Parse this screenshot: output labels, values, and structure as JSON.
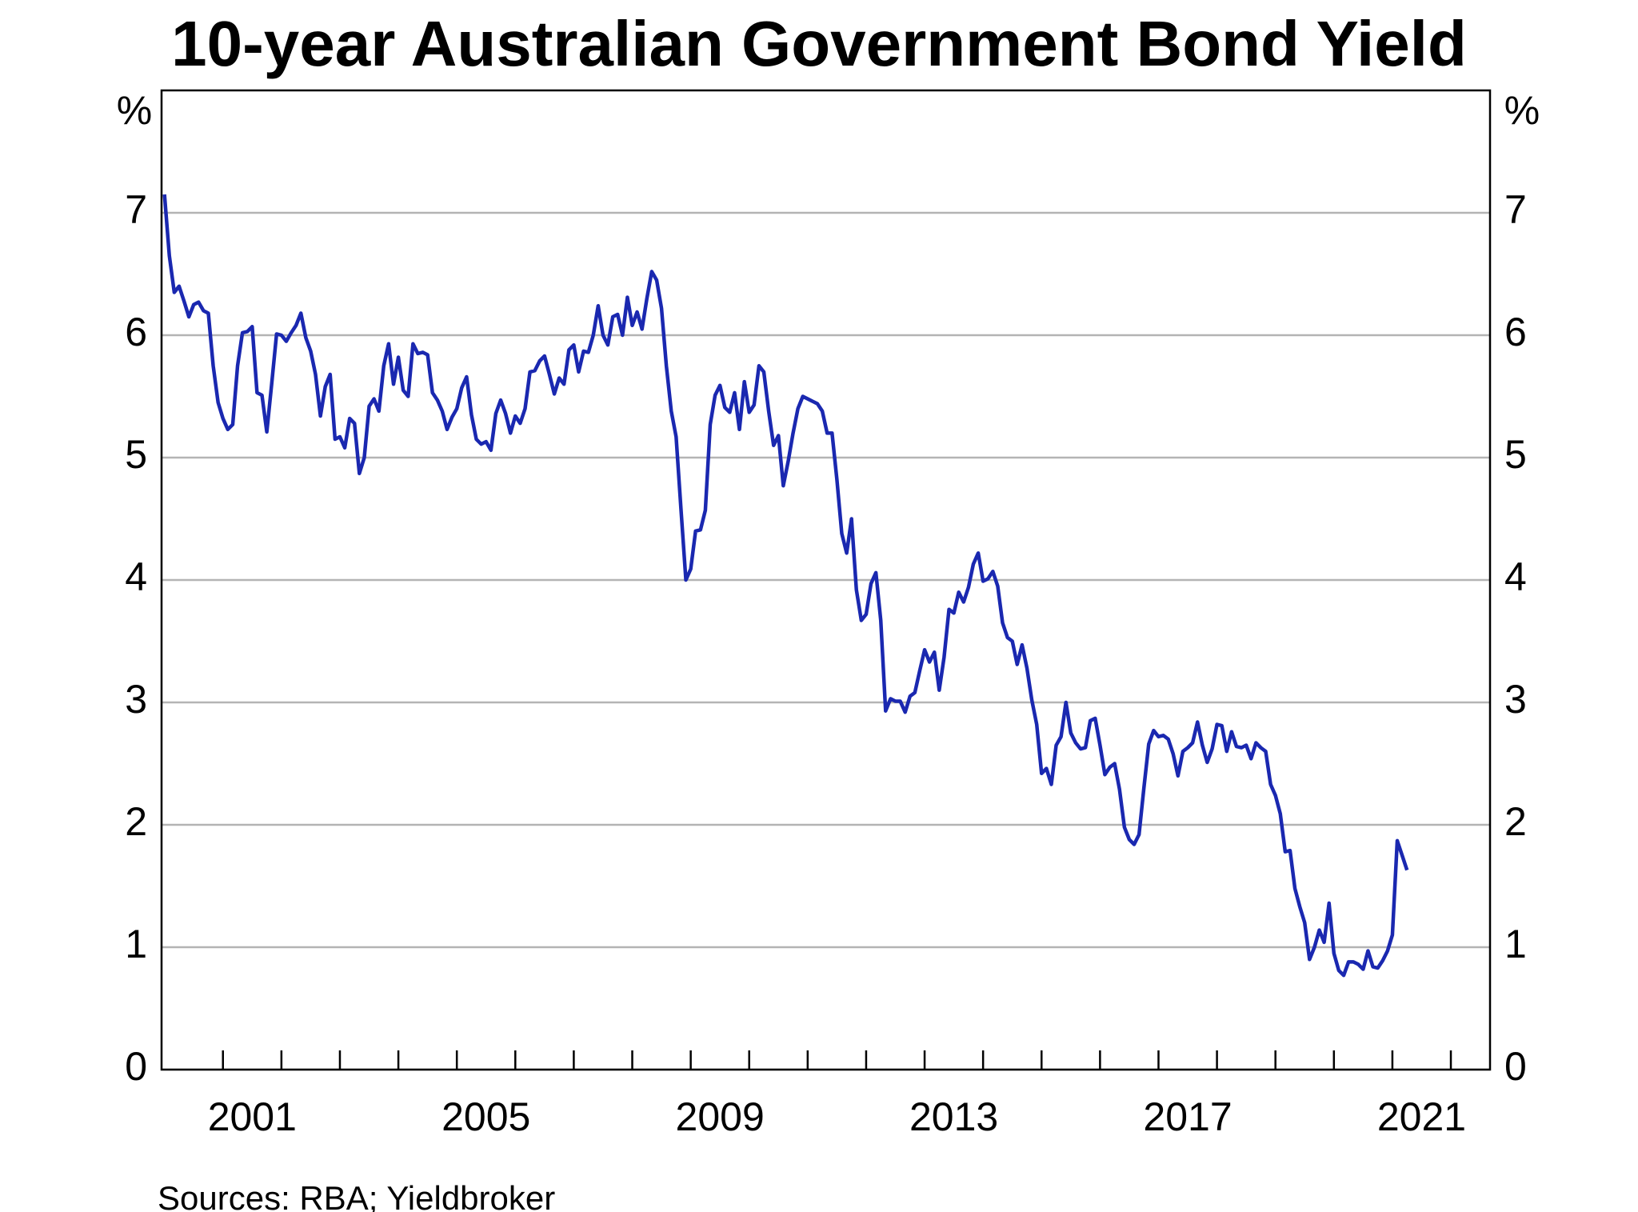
{
  "chart_data": {
    "type": "line",
    "title": "10-year Australian Government Bond Yield",
    "y_unit": "%",
    "source": "Sources: RBA; Yieldbroker",
    "color": "#1a28b0",
    "grid": true,
    "xlim": [
      1999.95,
      2022.67
    ],
    "ylim": [
      0,
      8
    ],
    "yticks": [
      0,
      1,
      2,
      3,
      4,
      5,
      6,
      7
    ],
    "xticks": [
      2001,
      2002,
      2003,
      2004,
      2005,
      2006,
      2007,
      2008,
      2009,
      2010,
      2011,
      2012,
      2013,
      2014,
      2015,
      2016,
      2017,
      2018,
      2019,
      2020,
      2021,
      2022
    ],
    "xtick_labels": [
      {
        "value": 2001.5,
        "label": "2001"
      },
      {
        "value": 2005.5,
        "label": "2005"
      },
      {
        "value": 2009.5,
        "label": "2009"
      },
      {
        "value": 2013.5,
        "label": "2013"
      },
      {
        "value": 2017.5,
        "label": "2017"
      },
      {
        "value": 2021.5,
        "label": "2021"
      }
    ],
    "x": [
      2000,
      2000.083,
      2000.167,
      2000.25,
      2000.333,
      2000.417,
      2000.5,
      2000.583,
      2000.667,
      2000.75,
      2000.833,
      2000.917,
      2001,
      2001.083,
      2001.167,
      2001.25,
      2001.333,
      2001.417,
      2001.5,
      2001.583,
      2001.667,
      2001.75,
      2001.833,
      2001.917,
      2002,
      2002.083,
      2002.167,
      2002.25,
      2002.333,
      2002.417,
      2002.5,
      2002.583,
      2002.667,
      2002.75,
      2002.833,
      2002.917,
      2003,
      2003.083,
      2003.167,
      2003.25,
      2003.333,
      2003.417,
      2003.5,
      2003.583,
      2003.667,
      2003.75,
      2003.833,
      2003.917,
      2004,
      2004.083,
      2004.167,
      2004.25,
      2004.333,
      2004.417,
      2004.5,
      2004.583,
      2004.667,
      2004.75,
      2004.833,
      2004.917,
      2005,
      2005.083,
      2005.167,
      2005.25,
      2005.333,
      2005.417,
      2005.5,
      2005.583,
      2005.667,
      2005.75,
      2005.833,
      2005.917,
      2006,
      2006.083,
      2006.167,
      2006.25,
      2006.333,
      2006.417,
      2006.5,
      2006.583,
      2006.667,
      2006.75,
      2006.833,
      2006.917,
      2007,
      2007.083,
      2007.167,
      2007.25,
      2007.333,
      2007.417,
      2007.5,
      2007.583,
      2007.667,
      2007.75,
      2007.833,
      2007.917,
      2008,
      2008.083,
      2008.167,
      2008.25,
      2008.333,
      2008.417,
      2008.5,
      2008.583,
      2008.667,
      2008.75,
      2008.833,
      2008.917,
      2009,
      2009.083,
      2009.167,
      2009.25,
      2009.333,
      2009.417,
      2009.5,
      2009.583,
      2009.667,
      2009.75,
      2009.833,
      2009.917,
      2010,
      2010.083,
      2010.167,
      2010.25,
      2010.333,
      2010.417,
      2010.5,
      2010.583,
      2010.667,
      2010.75,
      2010.833,
      2010.917,
      2011,
      2011.083,
      2011.167,
      2011.25,
      2011.333,
      2011.417,
      2011.5,
      2011.583,
      2011.667,
      2011.75,
      2011.833,
      2011.917,
      2012,
      2012.083,
      2012.167,
      2012.25,
      2012.333,
      2012.417,
      2012.5,
      2012.583,
      2012.667,
      2012.75,
      2012.833,
      2012.917,
      2013,
      2013.083,
      2013.167,
      2013.25,
      2013.333,
      2013.417,
      2013.5,
      2013.583,
      2013.667,
      2013.75,
      2013.833,
      2013.917,
      2014,
      2014.083,
      2014.167,
      2014.25,
      2014.333,
      2014.417,
      2014.5,
      2014.583,
      2014.667,
      2014.75,
      2014.833,
      2014.917,
      2015,
      2015.083,
      2015.167,
      2015.25,
      2015.333,
      2015.417,
      2015.5,
      2015.583,
      2015.667,
      2015.75,
      2015.833,
      2015.917,
      2016,
      2016.083,
      2016.167,
      2016.25,
      2016.333,
      2016.417,
      2016.5,
      2016.583,
      2016.667,
      2016.75,
      2016.833,
      2016.917,
      2017,
      2017.083,
      2017.167,
      2017.25,
      2017.333,
      2017.417,
      2017.5,
      2017.583,
      2017.667,
      2017.75,
      2017.833,
      2017.917,
      2018,
      2018.083,
      2018.167,
      2018.25,
      2018.333,
      2018.417,
      2018.5,
      2018.583,
      2018.667,
      2018.75,
      2018.833,
      2018.917,
      2019,
      2019.083,
      2019.167,
      2019.25,
      2019.333,
      2019.417,
      2019.5,
      2019.583,
      2019.667,
      2019.75,
      2019.833,
      2019.917,
      2020,
      2020.083,
      2020.167,
      2020.25,
      2020.333,
      2020.417,
      2020.5,
      2020.583,
      2020.667,
      2020.75,
      2020.833,
      2020.917,
      2021,
      2021.083,
      2021.167,
      2021.25
    ],
    "values": [
      7.15,
      6.65,
      6.35,
      6.4,
      6.28,
      6.15,
      6.25,
      6.27,
      6.2,
      6.18,
      5.75,
      5.45,
      5.32,
      5.23,
      5.27,
      5.75,
      6.02,
      6.03,
      6.07,
      5.53,
      5.51,
      5.21,
      5.6,
      6.01,
      6.0,
      5.95,
      6.02,
      6.08,
      6.18,
      5.98,
      5.87,
      5.68,
      5.34,
      5.58,
      5.68,
      5.15,
      5.17,
      5.08,
      5.32,
      5.28,
      4.87,
      5.0,
      5.42,
      5.48,
      5.38,
      5.75,
      5.93,
      5.6,
      5.82,
      5.55,
      5.5,
      5.93,
      5.85,
      5.86,
      5.84,
      5.53,
      5.47,
      5.38,
      5.23,
      5.33,
      5.4,
      5.57,
      5.66,
      5.35,
      5.15,
      5.11,
      5.13,
      5.06,
      5.36,
      5.47,
      5.36,
      5.2,
      5.34,
      5.28,
      5.4,
      5.7,
      5.71,
      5.79,
      5.83,
      5.68,
      5.52,
      5.65,
      5.6,
      5.88,
      5.92,
      5.7,
      5.87,
      5.86,
      6.0,
      6.24,
      6.0,
      5.92,
      6.15,
      6.17,
      6.0,
      6.31,
      6.08,
      6.19,
      6.05,
      6.3,
      6.52,
      6.45,
      6.22,
      5.75,
      5.38,
      5.17,
      4.58,
      4.0,
      4.09,
      4.4,
      4.41,
      4.57,
      5.27,
      5.51,
      5.59,
      5.41,
      5.37,
      5.53,
      5.23,
      5.62,
      5.37,
      5.43,
      5.75,
      5.7,
      5.38,
      5.1,
      5.18,
      4.77,
      4.97,
      5.2,
      5.4,
      5.5,
      5.48,
      5.46,
      5.44,
      5.38,
      5.2,
      5.2,
      4.82,
      4.38,
      4.22,
      4.5,
      3.92,
      3.67,
      3.72,
      3.97,
      4.06,
      3.67,
      2.93,
      3.03,
      3.01,
      3.01,
      2.92,
      3.05,
      3.08,
      3.26,
      3.43,
      3.33,
      3.41,
      3.1,
      3.37,
      3.76,
      3.73,
      3.9,
      3.82,
      3.94,
      4.13,
      4.22,
      3.99,
      4.01,
      4.07,
      3.95,
      3.65,
      3.53,
      3.5,
      3.31,
      3.47,
      3.28,
      3.02,
      2.82,
      2.42,
      2.46,
      2.33,
      2.65,
      2.72,
      3.0,
      2.75,
      2.67,
      2.62,
      2.63,
      2.85,
      2.87,
      2.65,
      2.41,
      2.47,
      2.5,
      2.29,
      1.98,
      1.88,
      1.84,
      1.92,
      2.3,
      2.66,
      2.77,
      2.72,
      2.73,
      2.7,
      2.58,
      2.4,
      2.6,
      2.63,
      2.67,
      2.84,
      2.65,
      2.51,
      2.62,
      2.82,
      2.81,
      2.6,
      2.76,
      2.64,
      2.63,
      2.65,
      2.54,
      2.67,
      2.63,
      2.6,
      2.33,
      2.24,
      2.09,
      1.78,
      1.79,
      1.48,
      1.33,
      1.2,
      0.9,
      1.0,
      1.14,
      1.04,
      1.36,
      0.95,
      0.81,
      0.77,
      0.88,
      0.88,
      0.86,
      0.82,
      0.97,
      0.84,
      0.83,
      0.89,
      0.97,
      1.1,
      1.87,
      1.75,
      1.63
    ]
  }
}
